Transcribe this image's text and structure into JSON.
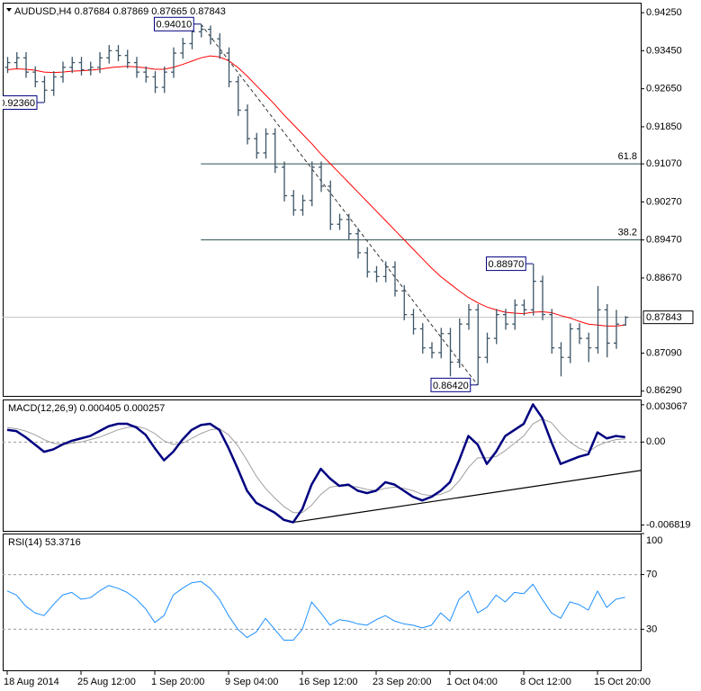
{
  "chart_data": [
    {
      "type": "ohlc",
      "title": "AUDUSD,H4",
      "categories": [
        "18 Aug 2014",
        null,
        null,
        null,
        null,
        null,
        null,
        null,
        "25 Aug 12:00",
        null,
        null,
        null,
        null,
        null,
        null,
        null,
        "1 Sep 20:00",
        null,
        null,
        null,
        null,
        null,
        null,
        null,
        "9 Sep 04:00",
        null,
        null,
        null,
        null,
        null,
        null,
        null,
        "16 Sep 12:00",
        null,
        null,
        null,
        null,
        null,
        null,
        null,
        "23 Sep 20:00",
        null,
        null,
        null,
        null,
        null,
        null,
        null,
        "1 Oct 04:00",
        null,
        null,
        null,
        null,
        null,
        null,
        null,
        "8 Oct 12:00",
        null,
        null,
        null,
        null,
        null,
        null,
        null,
        "15 Oct 20:00",
        null,
        null,
        null
      ],
      "open": [
        0.931,
        0.932,
        0.933,
        0.93,
        0.928,
        0.9262,
        0.929,
        0.931,
        0.932,
        0.9305,
        0.931,
        0.933,
        0.9345,
        0.9335,
        0.932,
        0.93,
        0.929,
        0.9268,
        0.93,
        0.934,
        0.936,
        0.9385,
        0.939,
        0.937,
        0.934,
        0.928,
        0.922,
        0.916,
        0.913,
        0.917,
        0.91,
        0.904,
        0.901,
        0.903,
        0.91,
        0.906,
        0.898,
        0.899,
        0.896,
        0.892,
        0.888,
        0.887,
        0.889,
        0.884,
        0.879,
        0.876,
        0.872,
        0.871,
        0.875,
        0.869,
        0.877,
        0.88,
        0.87,
        0.874,
        0.879,
        0.877,
        0.881,
        0.88,
        0.886,
        0.879,
        0.872,
        0.87,
        0.876,
        0.874,
        0.872,
        0.88,
        0.873,
        0.87684
      ],
      "high": [
        0.9332,
        0.9342,
        0.9342,
        0.9312,
        0.9292,
        0.9302,
        0.9322,
        0.9332,
        0.9332,
        0.9322,
        0.9342,
        0.9357,
        0.9357,
        0.9347,
        0.9332,
        0.9312,
        0.9302,
        0.9312,
        0.9352,
        0.9372,
        0.9397,
        0.9401,
        0.9398,
        0.9382,
        0.9352,
        0.9292,
        0.9232,
        0.9172,
        0.9182,
        0.9182,
        0.9112,
        0.9052,
        0.9042,
        0.9112,
        0.9112,
        0.9072,
        0.9002,
        0.9002,
        0.8972,
        0.8932,
        0.8892,
        0.8902,
        0.8902,
        0.8852,
        0.8802,
        0.8772,
        0.8732,
        0.8762,
        0.8762,
        0.8782,
        0.8812,
        0.8812,
        0.8752,
        0.8802,
        0.8802,
        0.8822,
        0.8822,
        0.8897,
        0.8872,
        0.8802,
        0.8732,
        0.8772,
        0.8772,
        0.8752,
        0.885,
        0.8812,
        0.88,
        0.87869
      ],
      "low": [
        0.9298,
        0.9308,
        0.9288,
        0.9268,
        0.9236,
        0.925,
        0.9278,
        0.9298,
        0.9293,
        0.9293,
        0.9298,
        0.9318,
        0.9323,
        0.9308,
        0.9288,
        0.9278,
        0.9256,
        0.9256,
        0.9288,
        0.9328,
        0.9348,
        0.9373,
        0.9358,
        0.9328,
        0.9268,
        0.9208,
        0.9148,
        0.9118,
        0.9118,
        0.9088,
        0.9028,
        0.8998,
        0.8998,
        0.9018,
        0.9048,
        0.8968,
        0.8968,
        0.8948,
        0.8908,
        0.8868,
        0.8858,
        0.8858,
        0.8828,
        0.8778,
        0.8748,
        0.8708,
        0.8698,
        0.8698,
        0.866,
        0.8678,
        0.8758,
        0.8642,
        0.8688,
        0.8728,
        0.8758,
        0.8758,
        0.8788,
        0.8788,
        0.8778,
        0.8708,
        0.866,
        0.8688,
        0.8728,
        0.869,
        0.8708,
        0.87,
        0.8718,
        0.87665
      ],
      "close": [
        0.932,
        0.933,
        0.93,
        0.928,
        0.9262,
        0.929,
        0.931,
        0.932,
        0.9305,
        0.931,
        0.933,
        0.9345,
        0.9335,
        0.932,
        0.93,
        0.929,
        0.9268,
        0.93,
        0.934,
        0.936,
        0.9385,
        0.939,
        0.937,
        0.934,
        0.928,
        0.922,
        0.916,
        0.913,
        0.917,
        0.91,
        0.904,
        0.901,
        0.903,
        0.91,
        0.906,
        0.898,
        0.899,
        0.896,
        0.892,
        0.888,
        0.887,
        0.889,
        0.884,
        0.879,
        0.876,
        0.872,
        0.871,
        0.875,
        0.869,
        0.877,
        0.88,
        0.87,
        0.874,
        0.879,
        0.877,
        0.881,
        0.88,
        0.886,
        0.879,
        0.872,
        0.87,
        0.876,
        0.874,
        0.872,
        0.88,
        0.873,
        0.877,
        0.87843
      ],
      "color": "#3c5567",
      "ma": {
        "color": "#ff0000",
        "values": [
          0.9305,
          0.9307,
          0.9306,
          0.9304,
          0.93,
          0.9299,
          0.93,
          0.9302,
          0.9303,
          0.9304,
          0.9306,
          0.9309,
          0.9311,
          0.9312,
          0.9311,
          0.9309,
          0.9306,
          0.9306,
          0.931,
          0.9316,
          0.9323,
          0.933,
          0.9334,
          0.9332,
          0.9324,
          0.931,
          0.9292,
          0.9272,
          0.9252,
          0.9232,
          0.921,
          0.919,
          0.917,
          0.915,
          0.9128,
          0.9108,
          0.9088,
          0.9068,
          0.9048,
          0.9028,
          0.9008,
          0.8988,
          0.8968,
          0.8948,
          0.8928,
          0.8908,
          0.8888,
          0.887,
          0.8855,
          0.884,
          0.8826,
          0.8815,
          0.8806,
          0.88,
          0.8795,
          0.8793,
          0.8792,
          0.8795,
          0.8796,
          0.8794,
          0.8788,
          0.8783,
          0.8776,
          0.877,
          0.8768,
          0.8766,
          0.8766,
          0.8768
        ]
      },
      "ylim": [
        0.8619,
        0.9446
      ],
      "yticks": [
        {
          "value": 0.9425,
          "label": "0.94250"
        },
        {
          "value": 0.9345,
          "label": "0.93450"
        },
        {
          "value": 0.9265,
          "label": "0.92650"
        },
        {
          "value": 0.9185,
          "label": "0.91850"
        },
        {
          "value": 0.9107,
          "label": "0.91070"
        },
        {
          "value": 0.9027,
          "label": "0.90270"
        },
        {
          "value": 0.8947,
          "label": "0.89470"
        },
        {
          "value": 0.8867,
          "label": "0.88670"
        },
        {
          "value": 0.8709,
          "label": "0.87090"
        },
        {
          "value": 0.8629,
          "label": "0.86290"
        }
      ],
      "fibo": {
        "color": "#2f4f4f",
        "levels": [
          {
            "label": "61.8",
            "value": 0.9107,
            "from": 21
          },
          {
            "label": "38.2",
            "value": 0.8947,
            "from": 21
          }
        ]
      },
      "annotations": [
        {
          "label": "0.92360",
          "value": 0.9236,
          "bar": 4
        },
        {
          "label": "0.94010",
          "value": 0.9401,
          "bar": 21
        },
        {
          "label": "0.88970",
          "value": 0.8897,
          "bar": 57
        },
        {
          "label": "0.86420",
          "value": 0.8642,
          "bar": 51
        }
      ]
    },
    {
      "type": "line",
      "title": "MACD(12,26,9)",
      "series": [
        {
          "color": "#000080",
          "values": [
            0.001,
            0.0009,
            0.0004,
            -0.0002,
            -0.0008,
            -0.0006,
            -0.0002,
            0.0001,
            0.0003,
            0.0005,
            0.0009,
            0.0013,
            0.0015,
            0.0015,
            0.0012,
            0.0006,
            -0.0005,
            -0.0015,
            -0.0008,
            0.0002,
            0.001,
            0.0014,
            0.0015,
            0.001,
            -0.0005,
            -0.0022,
            -0.004,
            -0.005,
            -0.0054,
            -0.0058,
            -0.0064,
            -0.0066,
            -0.0055,
            -0.0035,
            -0.0022,
            -0.003,
            -0.0036,
            -0.0035,
            -0.004,
            -0.0042,
            -0.004,
            -0.0033,
            -0.0035,
            -0.004,
            -0.0045,
            -0.0048,
            -0.0045,
            -0.004,
            -0.0033,
            -0.0015,
            0.0005,
            -0.0002,
            -0.0018,
            -0.0008,
            0.0005,
            0.001,
            0.0015,
            0.0031,
            0.002,
            0.0,
            -0.0018,
            -0.0015,
            -0.0012,
            -0.001,
            0.0008,
            0.0003,
            0.0005,
            0.000405
          ]
        },
        {
          "color": "#a0a0a0",
          "values": [
            0.0012,
            0.0011,
            0.0009,
            0.0006,
            0.0002,
            -0.0001,
            -0.0002,
            -0.0001,
            0.0,
            0.0002,
            0.0004,
            0.0007,
            0.001,
            0.0012,
            0.0013,
            0.0011,
            0.0007,
            0.0001,
            -0.0002,
            -0.0001,
            0.0003,
            0.0007,
            0.001,
            0.0011,
            0.0006,
            -0.0003,
            -0.0015,
            -0.0028,
            -0.0038,
            -0.0046,
            -0.0053,
            -0.0058,
            -0.0058,
            -0.0052,
            -0.0043,
            -0.0037,
            -0.0036,
            -0.0036,
            -0.0037,
            -0.0039,
            -0.004,
            -0.0038,
            -0.0037,
            -0.0038,
            -0.004,
            -0.0043,
            -0.0044,
            -0.0043,
            -0.004,
            -0.0032,
            -0.0021,
            -0.0013,
            -0.0013,
            -0.0012,
            -0.0007,
            -0.0001,
            0.0005,
            0.0015,
            0.0019,
            0.0016,
            0.0007,
            0.0,
            -0.0005,
            -0.0008,
            -0.0003,
            0.0,
            0.0002,
            0.000257
          ]
        }
      ],
      "ylim": [
        -0.0073,
        0.0035
      ],
      "yticks": [
        0.003067,
        {
          "value": 0,
          "label": "0.00"
        },
        -0.006819
      ],
      "levels": [
        0
      ],
      "trendline": {
        "x": [
          31,
          69
        ],
        "values": [
          -0.0066,
          -0.0023
        ]
      }
    },
    {
      "type": "line",
      "title": "RSI(14)",
      "series": [
        {
          "color": "#1e90ff",
          "values": [
            58,
            55,
            47,
            42,
            40,
            48,
            55,
            57,
            52,
            53,
            58,
            62,
            60,
            57,
            52,
            45,
            35,
            40,
            55,
            60,
            64,
            65,
            60,
            52,
            40,
            30,
            24,
            28,
            38,
            30,
            22,
            22,
            30,
            50,
            42,
            33,
            37,
            36,
            34,
            33,
            37,
            40,
            36,
            34,
            33,
            31,
            33,
            42,
            36,
            52,
            58,
            42,
            46,
            55,
            50,
            57,
            56,
            63,
            52,
            42,
            38,
            50,
            48,
            44,
            58,
            46,
            52,
            53.3716
          ]
        }
      ],
      "ylim": [
        0,
        100
      ],
      "yticks": [
        100,
        70,
        30
      ],
      "levels": [
        70,
        30
      ]
    }
  ]
}
